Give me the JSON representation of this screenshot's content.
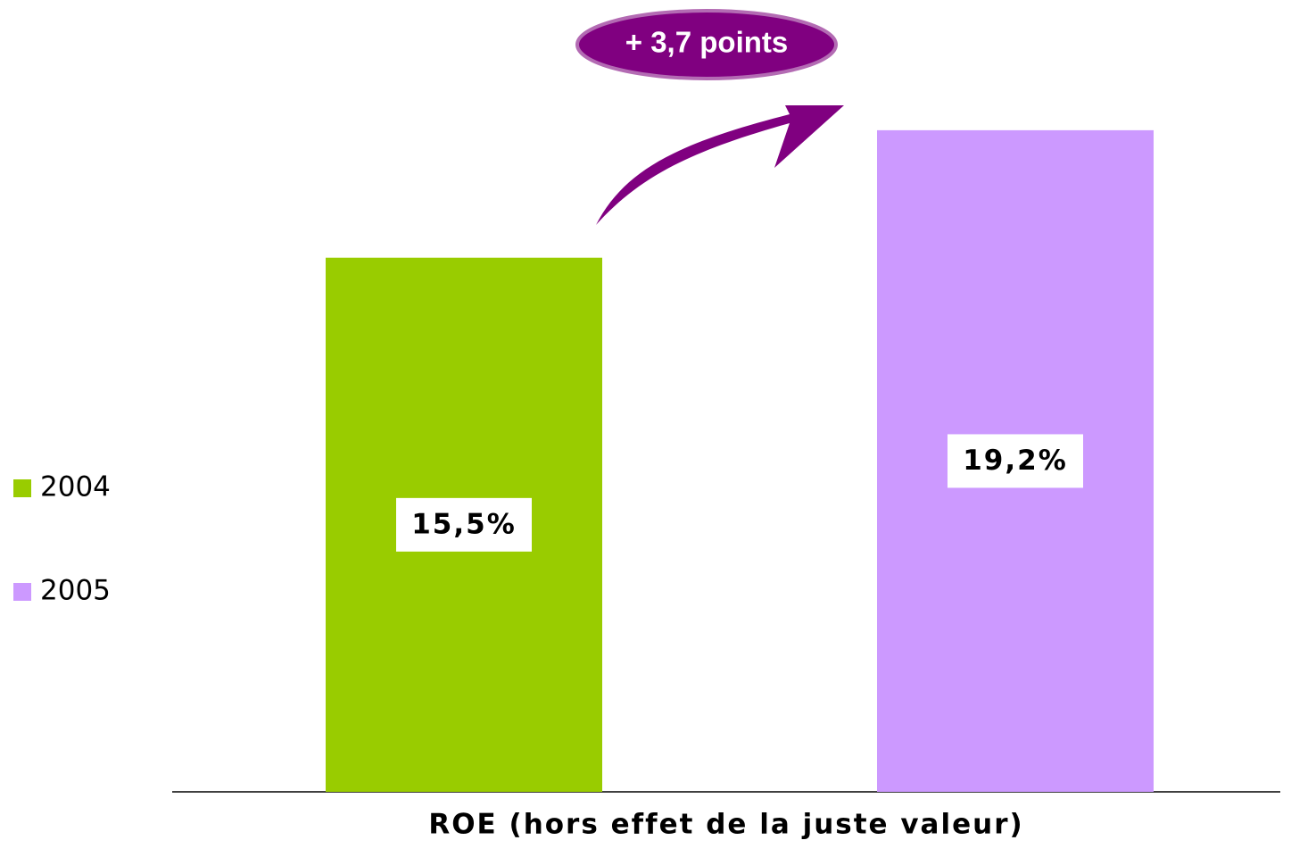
{
  "chart_data": {
    "type": "bar",
    "categories": [
      "ROE (hors effet de la juste valeur)"
    ],
    "series": [
      {
        "name": "2004",
        "color": "#99cc00",
        "values": [
          15.5
        ],
        "value_labels": [
          "15,5%"
        ]
      },
      {
        "name": "2005",
        "color": "#cc99ff",
        "values": [
          19.2
        ],
        "value_labels": [
          "19,2%"
        ]
      }
    ],
    "annotation": "+ 3,7 points"
  }
}
